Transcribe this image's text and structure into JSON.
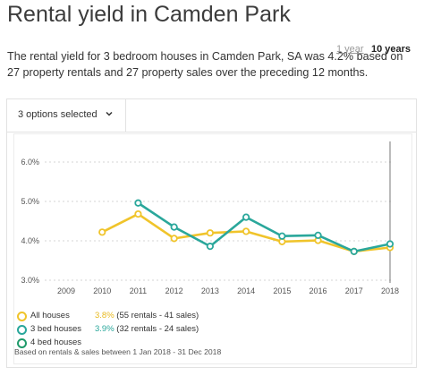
{
  "heading": "Rental yield in Camden Park",
  "description": "The rental yield for 3 bedroom houses in Camden Park, SA was 4.2% based on 27 property rentals and 27 property sales over the preceding 12 months.",
  "selector_label": "3 options selected",
  "periods": {
    "one_year": "1 year",
    "ten_years": "10 years"
  },
  "colors": {
    "all_houses": "#f0c42b",
    "bed3": "#2aa79b",
    "bed4": "#1f9a6a"
  },
  "legend": {
    "all_houses": {
      "name": "All houses",
      "value": "3.8%",
      "detail": "(55 rentals - 41 sales)"
    },
    "bed3": {
      "name": "3 bed houses",
      "value": "3.9%",
      "detail": "(32 rentals - 24 sales)"
    },
    "bed4": {
      "name": "4 bed houses"
    },
    "footnote": "Based on rentals & sales between 1 Jan 2018 - 31 Dec 2018"
  },
  "chart_data": {
    "type": "line",
    "x": [
      "2009",
      "2010",
      "2011",
      "2012",
      "2013",
      "2014",
      "2015",
      "2016",
      "2017",
      "2018"
    ],
    "y_ticks": [
      "6.0%",
      "5.0%",
      "4.0%",
      "3.0%"
    ],
    "ylim": [
      3.0,
      6.0
    ],
    "series": [
      {
        "name": "All houses",
        "values": [
          null,
          4.22,
          4.68,
          4.06,
          4.2,
          4.24,
          3.98,
          4.01,
          3.73,
          3.83
        ]
      },
      {
        "name": "3 bed houses",
        "values": [
          null,
          null,
          4.96,
          4.35,
          3.86,
          4.6,
          4.12,
          4.14,
          3.73,
          3.92
        ]
      }
    ],
    "selected_year": "2018"
  }
}
